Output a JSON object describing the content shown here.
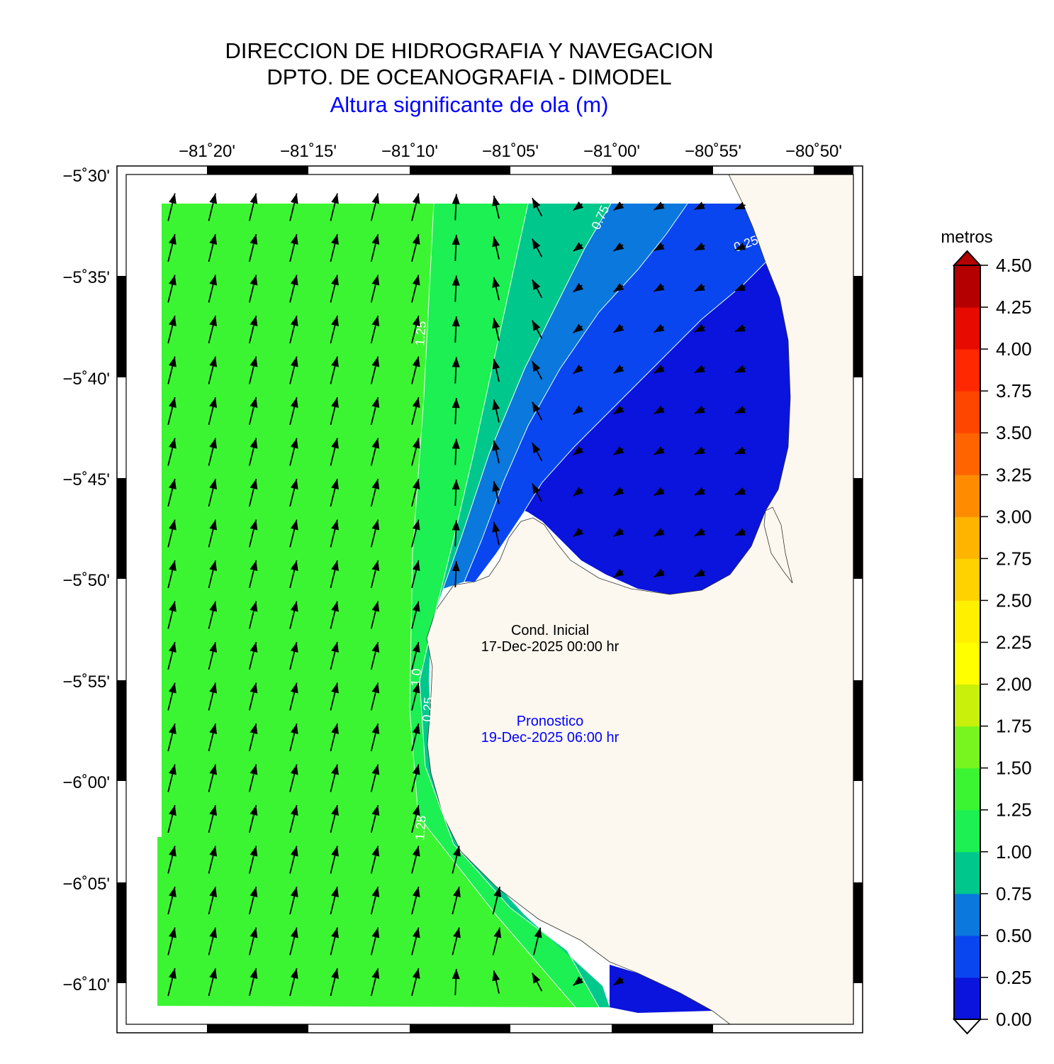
{
  "header": {
    "line1": "DIRECCION DE HIDROGRAFIA Y NAVEGACION",
    "line2": "DPTO. DE OCEANOGRAFIA - DIMODEL",
    "line3": "Altura significante de ola (m)"
  },
  "map": {
    "lon_ticks": [
      "−81˚20'",
      "−81˚15'",
      "−81˚10'",
      "−81˚05'",
      "−81˚00'",
      "−80˚55'",
      "−80˚50'"
    ],
    "lat_ticks": [
      "−5˚30'",
      "−5˚35'",
      "−5˚40'",
      "−5˚45'",
      "−5˚50'",
      "−5˚55'",
      "−6˚00'",
      "−6˚05'",
      "−6˚10'"
    ],
    "contour_labels": [
      "0.75",
      "0.25",
      "1.25",
      "1.25",
      "1.0",
      "0.25"
    ],
    "colors": {
      "land": "#fdf8ef",
      "sea_1_25_1_50": "#3cf532",
      "sea_1_00_1_25": "#1cf052",
      "sea_0_75_1_00": "#00c88c",
      "sea_0_50_0_75": "#0a78dc",
      "sea_0_25_0_50": "#0a46f0",
      "sea_0_00_0_25": "#0a14dc"
    }
  },
  "annotations": {
    "initial_label": "Cond. Inicial",
    "initial_date": "17-Dec-2025 00:00 hr",
    "forecast_label": "Pronostico",
    "forecast_date": "19-Dec-2025 06:00 hr"
  },
  "colorbar": {
    "title": "metros",
    "ticks": [
      "0.00",
      "0.25",
      "0.50",
      "0.75",
      "1.00",
      "1.25",
      "1.50",
      "1.75",
      "2.00",
      "2.25",
      "2.50",
      "2.75",
      "3.00",
      "3.25",
      "3.50",
      "3.75",
      "4.00",
      "4.25",
      "4.50"
    ],
    "colors": [
      "#0a14dc",
      "#0a46f0",
      "#0a78dc",
      "#00c88c",
      "#1cf052",
      "#3cf532",
      "#78f51e",
      "#c8f00a",
      "#ffff00",
      "#fff000",
      "#ffd200",
      "#ffb400",
      "#ff8c00",
      "#ff6400",
      "#ff4600",
      "#ff2800",
      "#e60a00",
      "#b40000"
    ],
    "under_color": "#ffffff",
    "over_color": "#b40000"
  }
}
